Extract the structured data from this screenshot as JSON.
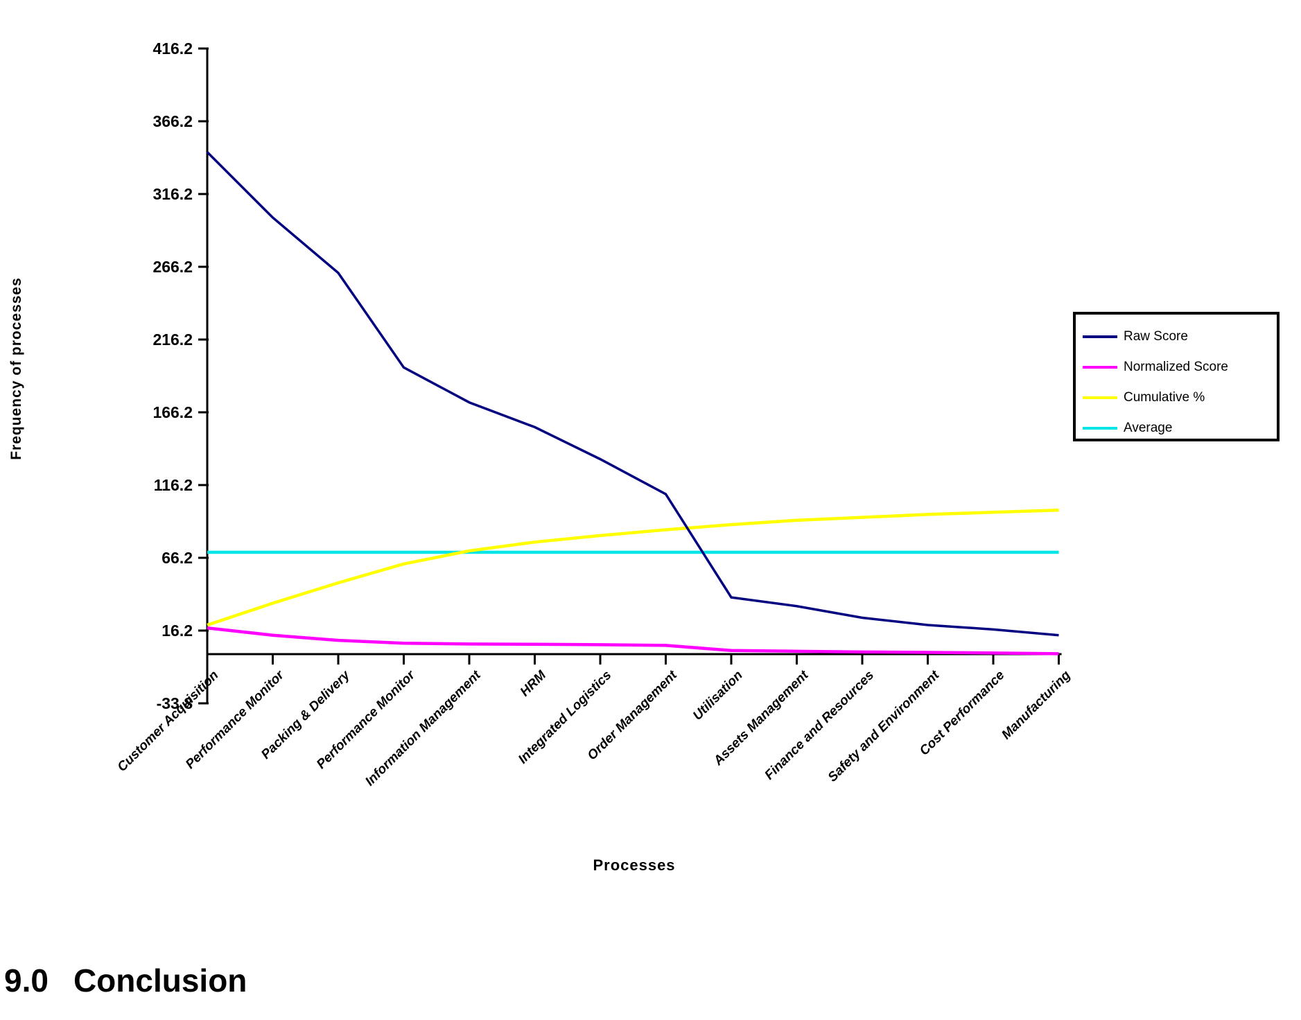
{
  "page": {
    "heading_number": "9.0",
    "heading_text": "Conclusion"
  },
  "chart_data": {
    "type": "line",
    "title": "",
    "xlabel": "Processes",
    "ylabel": "Frequency of processes",
    "categories": [
      "Customer Acquisition",
      "Performance Monitor",
      "Packing & Delivery",
      "Performance Monitor",
      "Information Management",
      "HRM",
      "Integrated Logistics",
      "Order Management",
      "Utilisation",
      "Assets Management",
      "Finance and Resources",
      "Safety and Environment",
      "Cost Performance",
      "Manufacturing"
    ],
    "y_tick_labels": [
      "416.2",
      "366.2",
      "316.2",
      "266.2",
      "216.2",
      "166.2",
      "116.2",
      "66.2",
      "16.2",
      "-33.8"
    ],
    "ylim": [
      -33.8,
      416.2
    ],
    "x_axis_crosses_at": 0,
    "grid": false,
    "legend_position": "right",
    "series": [
      {
        "name": "Raw Score",
        "color": "#000080",
        "values": [
          345,
          300,
          262,
          197,
          173,
          156,
          134,
          110,
          39,
          33,
          25,
          20,
          17,
          13
        ]
      },
      {
        "name": "Normalized Score",
        "color": "#FF00FF",
        "values": [
          18,
          13,
          9.5,
          7.5,
          7,
          6.8,
          6.5,
          6,
          2.5,
          2,
          1.5,
          1.2,
          0.8,
          0.3
        ]
      },
      {
        "name": "Cumulative %",
        "color": "#FFFF00",
        "values": [
          20,
          35,
          49,
          62,
          71,
          77,
          81.5,
          85.5,
          89,
          92,
          94,
          96,
          97.5,
          99
        ]
      },
      {
        "name": "Average",
        "color": "#00E5E5",
        "values": [
          70,
          70,
          70,
          70,
          70,
          70,
          70,
          70,
          70,
          70,
          70,
          70,
          70,
          70
        ]
      }
    ]
  }
}
